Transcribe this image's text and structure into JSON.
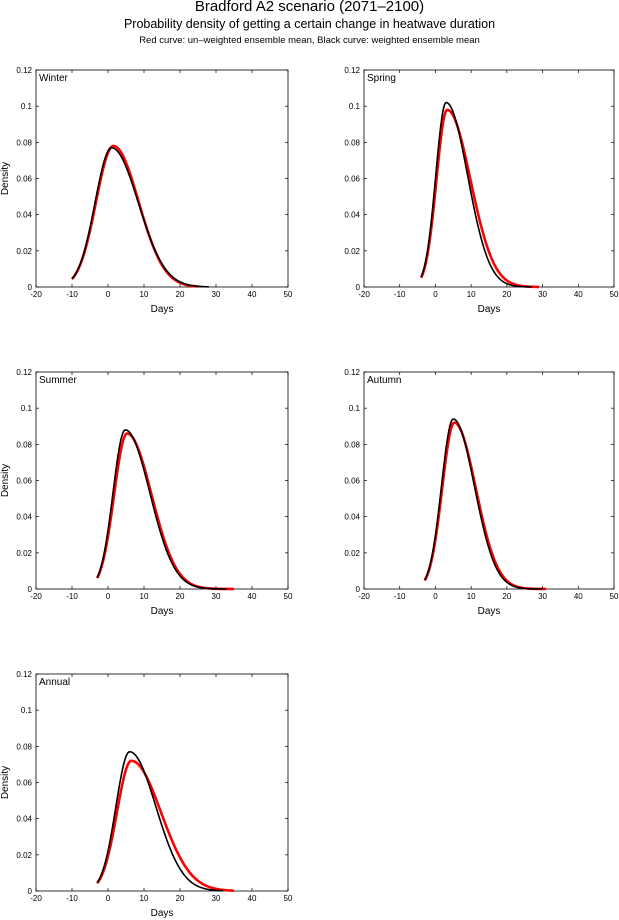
{
  "header": {
    "title": "Bradford A2 scenario (2071–2100)",
    "subtitle": "Probability density of getting a certain change in heatwave duration",
    "note": "Red curve: un–weighted ensemble mean, Black curve: weighted ensemble mean"
  },
  "colors": {
    "unweighted": "#ff0000",
    "weighted": "#000000"
  },
  "chart_data": [
    {
      "type": "line",
      "label": "Winter",
      "xlabel": "Days",
      "ylabel": "Density",
      "xlim": [
        -20,
        50
      ],
      "ylim": [
        0,
        0.12
      ],
      "xticks": [
        "-20",
        "-10",
        "0",
        "10",
        "20",
        "30",
        "40",
        "50"
      ],
      "yticks": [
        "0",
        "0.02",
        "0.04",
        "0.06",
        "0.08",
        "0.1",
        "0.12"
      ],
      "series": [
        {
          "color": "#ff0000",
          "peak_x": 1.5,
          "peak_y": 0.078,
          "left_width": 4.8,
          "right_width": 7.0,
          "x_start": -10,
          "x_end": 25
        },
        {
          "color": "#000000",
          "peak_x": 1.0,
          "peak_y": 0.077,
          "left_width": 4.6,
          "right_width": 7.4,
          "x_start": -10,
          "x_end": 28
        }
      ]
    },
    {
      "type": "line",
      "label": "Spring",
      "xlabel": "Days",
      "ylabel": "",
      "xlim": [
        -20,
        50
      ],
      "ylim": [
        0,
        0.12
      ],
      "xticks": [
        "-20",
        "-10",
        "0",
        "10",
        "20",
        "30",
        "40",
        "50"
      ],
      "yticks": [
        "0",
        "0.02",
        "0.04",
        "0.06",
        "0.08",
        "0.1",
        "0.12"
      ],
      "series": [
        {
          "color": "#ff0000",
          "peak_x": 3.3,
          "peak_y": 0.098,
          "left_width": 3.0,
          "right_width": 6.5,
          "x_start": -4,
          "x_end": 29
        },
        {
          "color": "#000000",
          "peak_x": 3.0,
          "peak_y": 0.102,
          "left_width": 2.9,
          "right_width": 6.0,
          "x_start": -4,
          "x_end": 27
        }
      ]
    },
    {
      "type": "line",
      "label": "Summer",
      "xlabel": "Days",
      "ylabel": "Density",
      "xlim": [
        -20,
        50
      ],
      "ylim": [
        0,
        0.12
      ],
      "xticks": [
        "-20",
        "-10",
        "0",
        "10",
        "20",
        "30",
        "40",
        "50"
      ],
      "yticks": [
        "0",
        "0.02",
        "0.04",
        "0.06",
        "0.08",
        "0.1",
        "0.12"
      ],
      "series": [
        {
          "color": "#ff0000",
          "peak_x": 5.3,
          "peak_y": 0.086,
          "left_width": 3.6,
          "right_width": 6.8,
          "x_start": -3,
          "x_end": 35
        },
        {
          "color": "#000000",
          "peak_x": 4.8,
          "peak_y": 0.088,
          "left_width": 3.4,
          "right_width": 6.8,
          "x_start": -3,
          "x_end": 33
        }
      ]
    },
    {
      "type": "line",
      "label": "Autumn",
      "xlabel": "Days",
      "ylabel": "",
      "xlim": [
        -20,
        50
      ],
      "ylim": [
        0,
        0.12
      ],
      "xticks": [
        "-20",
        "-10",
        "0",
        "10",
        "20",
        "30",
        "40",
        "50"
      ],
      "yticks": [
        "0",
        "0.02",
        "0.04",
        "0.06",
        "0.08",
        "0.1",
        "0.12"
      ],
      "series": [
        {
          "color": "#ff0000",
          "peak_x": 5.3,
          "peak_y": 0.092,
          "left_width": 3.4,
          "right_width": 6.0,
          "x_start": -3,
          "x_end": 31
        },
        {
          "color": "#000000",
          "peak_x": 5.0,
          "peak_y": 0.094,
          "left_width": 3.3,
          "right_width": 5.9,
          "x_start": -3,
          "x_end": 30
        }
      ]
    },
    {
      "type": "line",
      "label": "Annual",
      "xlabel": "Days",
      "ylabel": "Density",
      "xlim": [
        -20,
        50
      ],
      "ylim": [
        0,
        0.12
      ],
      "xticks": [
        "-20",
        "-10",
        "0",
        "10",
        "20",
        "30",
        "40",
        "50"
      ],
      "yticks": [
        "0",
        "0.02",
        "0.04",
        "0.06",
        "0.08",
        "0.1",
        "0.12"
      ],
      "series": [
        {
          "color": "#ff0000",
          "peak_x": 6.5,
          "peak_y": 0.072,
          "left_width": 4.0,
          "right_width": 8.2,
          "x_start": -3,
          "x_end": 35
        },
        {
          "color": "#000000",
          "peak_x": 6.0,
          "peak_y": 0.077,
          "left_width": 3.8,
          "right_width": 7.3,
          "x_start": -3,
          "x_end": 32
        }
      ]
    }
  ]
}
